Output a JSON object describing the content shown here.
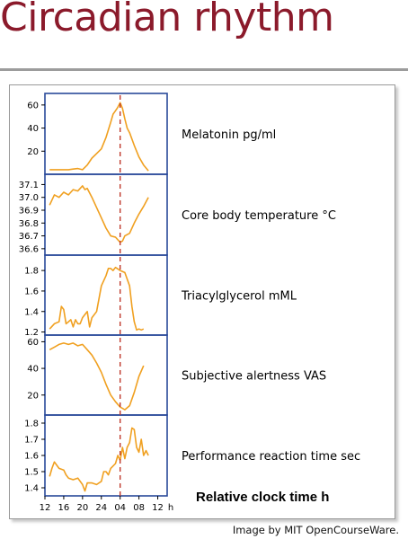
{
  "slide": {
    "title": "Circadian rhythm",
    "credit": "Image by MIT OpenCourseWare."
  },
  "colors": {
    "title": "#8b1a2b",
    "line": "#f0a020",
    "panel_border": "#2a4a9a",
    "marker": "#c0392b"
  },
  "chart_data": {
    "type": "line",
    "xlabel": "Relative clock time h",
    "x_ticks": [
      "12",
      "16",
      "20",
      "24",
      "04",
      "08",
      "12"
    ],
    "x_unit": "h",
    "x_range": [
      12,
      38
    ],
    "marker_x": 28,
    "marker_style": "dashed vertical line",
    "panels": [
      {
        "label": "Melatonin pg/ml",
        "ylim": [
          0,
          70
        ],
        "yticks": [
          20,
          40,
          60
        ],
        "x": [
          13,
          14,
          15,
          16,
          17,
          18,
          19,
          20,
          21,
          22,
          23,
          24,
          25,
          26,
          26.5,
          27,
          27.5,
          28,
          28.5,
          29,
          29.5,
          30,
          31,
          32,
          33,
          34
        ],
        "values": [
          4,
          4,
          4,
          4,
          4,
          4.5,
          5,
          4,
          8,
          14,
          18,
          22,
          32,
          45,
          52,
          55,
          58,
          62,
          57,
          48,
          40,
          36,
          25,
          15,
          8,
          3
        ]
      },
      {
        "label": "Core body temperature °C",
        "ylim": [
          36.55,
          37.18
        ],
        "yticks": [
          36.6,
          36.7,
          36.8,
          36.9,
          37.0,
          37.1
        ],
        "x": [
          13,
          14,
          15,
          16,
          17,
          18,
          19,
          20,
          20.5,
          21,
          22,
          23,
          24,
          25,
          26,
          27,
          27.5,
          28,
          28.5,
          29,
          30,
          31,
          32,
          33,
          34
        ],
        "values": [
          36.94,
          37.02,
          37.0,
          37.04,
          37.02,
          37.06,
          37.05,
          37.09,
          37.06,
          37.07,
          37.0,
          36.92,
          36.84,
          36.76,
          36.7,
          36.69,
          36.67,
          36.65,
          36.66,
          36.7,
          36.72,
          36.8,
          36.87,
          36.93,
          37.0
        ]
      },
      {
        "label": "Triacylglycerol mML",
        "ylim": [
          1.17,
          1.95
        ],
        "yticks": [
          1.2,
          1.4,
          1.6,
          1.8
        ],
        "x": [
          13,
          14,
          15,
          15.5,
          16,
          16.5,
          17,
          17.5,
          18,
          18.5,
          19,
          19.5,
          20,
          21,
          21.5,
          22,
          23,
          24,
          25,
          25.5,
          26,
          26.5,
          27,
          28,
          29,
          30,
          30.5,
          31,
          31.5,
          32,
          32.5,
          33
        ],
        "values": [
          1.23,
          1.28,
          1.3,
          1.45,
          1.42,
          1.28,
          1.3,
          1.32,
          1.25,
          1.32,
          1.28,
          1.28,
          1.34,
          1.4,
          1.25,
          1.34,
          1.4,
          1.65,
          1.75,
          1.82,
          1.82,
          1.8,
          1.83,
          1.8,
          1.78,
          1.65,
          1.45,
          1.3,
          1.22,
          1.23,
          1.22,
          1.23
        ]
      },
      {
        "label": "Subjective alertness VAS",
        "ylim": [
          5,
          65
        ],
        "yticks": [
          20,
          40,
          60
        ],
        "x": [
          13,
          14,
          15,
          16,
          17,
          18,
          19,
          20,
          21,
          22,
          23,
          24,
          25,
          26,
          27,
          28,
          29,
          30,
          31,
          32,
          33
        ],
        "values": [
          54,
          56,
          58,
          59,
          58,
          59,
          57,
          58,
          54,
          50,
          44,
          37,
          28,
          20,
          15,
          11,
          9,
          12,
          22,
          34,
          42
        ]
      },
      {
        "label": "Performance reaction time sec",
        "ylim": [
          1.35,
          1.85
        ],
        "yticks": [
          1.4,
          1.5,
          1.6,
          1.7,
          1.8
        ],
        "x": [
          13,
          13.5,
          14,
          15,
          16,
          16.5,
          17,
          18,
          19,
          20,
          20.5,
          21,
          22,
          23,
          24,
          24.5,
          25,
          25.5,
          26,
          27,
          27.5,
          28,
          28.5,
          29,
          29.5,
          30,
          30.5,
          31,
          31.5,
          32,
          32.5,
          33,
          33.5,
          34
        ],
        "values": [
          1.47,
          1.52,
          1.56,
          1.52,
          1.51,
          1.48,
          1.46,
          1.45,
          1.46,
          1.42,
          1.38,
          1.43,
          1.43,
          1.42,
          1.44,
          1.5,
          1.5,
          1.48,
          1.52,
          1.55,
          1.6,
          1.57,
          1.65,
          1.58,
          1.65,
          1.68,
          1.77,
          1.76,
          1.65,
          1.62,
          1.7,
          1.6,
          1.63,
          1.6
        ]
      }
    ]
  }
}
